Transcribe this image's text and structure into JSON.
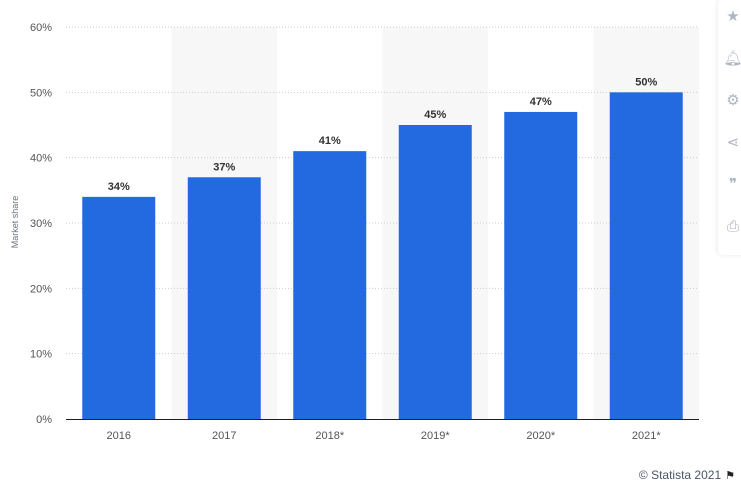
{
  "chart_data": {
    "type": "bar",
    "categories": [
      "2016",
      "2017",
      "2018*",
      "2019*",
      "2020*",
      "2021*"
    ],
    "values": [
      34,
      37,
      41,
      45,
      47,
      50
    ],
    "value_labels": [
      "34%",
      "37%",
      "41%",
      "45%",
      "47%",
      "50%"
    ],
    "ylabel": "Market share",
    "ylim": [
      0,
      60
    ],
    "yticks": [
      0,
      10,
      20,
      30,
      40,
      50,
      60
    ],
    "ytick_labels": [
      "0%",
      "10%",
      "20%",
      "30%",
      "40%",
      "50%",
      "60%"
    ],
    "grid": true,
    "bar_color": "#2369e0"
  },
  "credit": {
    "text": "© Statista 2021",
    "flag_icon": "flag-icon"
  },
  "toolbar": {
    "icons": [
      "star-icon",
      "bell-icon",
      "gear-icon",
      "share-icon",
      "quote-icon",
      "print-icon"
    ]
  }
}
